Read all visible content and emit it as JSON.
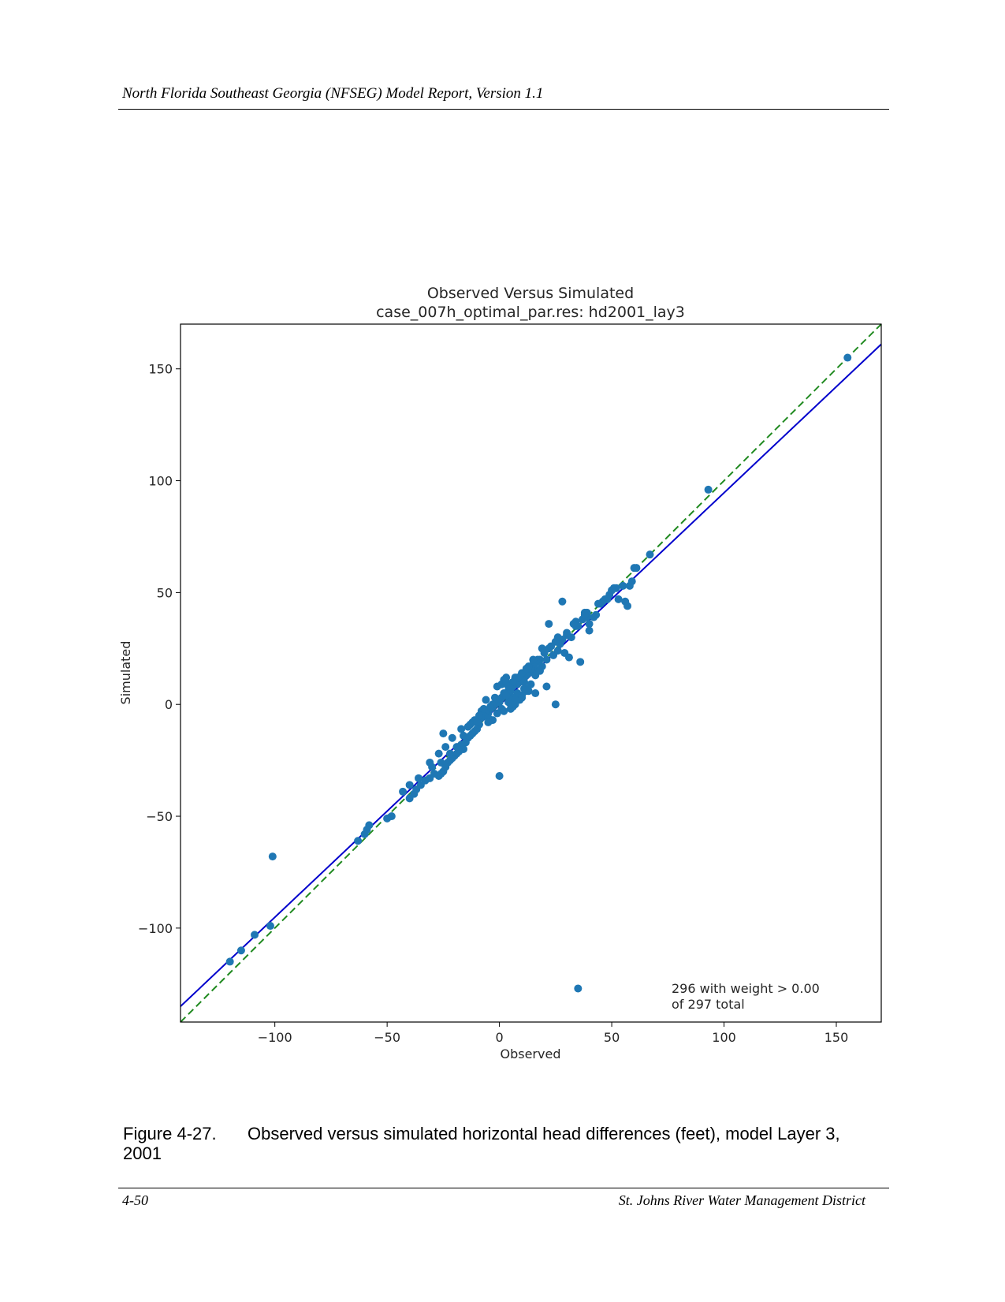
{
  "header": {
    "title": "North Florida Southeast Georgia (NFSEG) Model Report, Version 1.1"
  },
  "footer": {
    "page": "4-50",
    "organization": "St. Johns River Water Management District"
  },
  "caption": {
    "number": "Figure 4-27.",
    "text": "Observed versus simulated horizontal head differences (feet), model Layer 3, 2001"
  },
  "colors": {
    "points": "#1f77b4",
    "fit_line": "#0000cc",
    "one_to_one_line": "#228B22"
  },
  "chart_data": {
    "type": "scatter",
    "title": "Observed Versus Simulated",
    "subtitle": "case_007h_optimal_par.res: hd2001_lay3",
    "xlabel": "Observed",
    "ylabel": "Simulated",
    "xlim": [
      -142,
      170
    ],
    "ylim": [
      -142,
      170
    ],
    "xticks": [
      -100,
      -50,
      0,
      50,
      100,
      150
    ],
    "yticks": [
      -100,
      -50,
      0,
      50,
      100,
      150
    ],
    "tick_labels": {
      "x": [
        "−100",
        "−50",
        "0",
        "50",
        "100",
        "150"
      ],
      "y": [
        "−100",
        "−50",
        "0",
        "50",
        "100",
        "150"
      ]
    },
    "annotation": {
      "line1": "296 with weight > 0.00",
      "line2": "of 297 total",
      "position": "bottom-right"
    },
    "lines": [
      {
        "style": "solid",
        "color": "#0000cc",
        "x": [
          -142,
          170
        ],
        "y": [
          -135,
          161
        ]
      },
      {
        "style": "dashed",
        "color": "#228B22",
        "x": [
          -142,
          170
        ],
        "y": [
          -142,
          170
        ]
      }
    ],
    "series": [
      {
        "x": [
          155,
          93,
          67,
          61,
          59,
          58,
          55,
          51,
          49,
          47,
          53,
          56,
          57,
          48,
          45,
          43,
          40,
          39,
          38,
          37,
          35,
          34,
          32,
          30,
          28,
          27,
          25,
          24,
          22,
          21,
          20,
          19,
          18,
          17,
          16,
          15,
          14,
          13,
          12,
          11,
          10,
          9,
          8,
          7,
          6,
          5,
          4,
          3,
          2,
          1,
          0,
          -1,
          -2,
          -3,
          -4,
          -5,
          -6,
          -7,
          -8,
          -9,
          -10,
          -11,
          -12,
          -13,
          -14,
          -15,
          -16,
          -17,
          -18,
          -19,
          -20,
          -21,
          -22,
          -23,
          -24,
          -25,
          -26,
          -27,
          -29,
          -31,
          -33,
          -35,
          -37,
          -38,
          -40,
          -43,
          -48,
          -50,
          -58,
          -59,
          -60,
          -63,
          -101,
          -102,
          -109,
          -115,
          -120,
          35,
          39,
          28,
          29,
          31,
          40,
          42,
          22,
          25,
          19,
          14,
          21,
          3,
          5,
          7,
          9,
          12,
          16,
          2,
          -1,
          4,
          6,
          8,
          10,
          13,
          11,
          1,
          -3,
          -6,
          -8,
          -11,
          -14,
          -16,
          -19,
          -22,
          -26,
          -30,
          -25,
          0,
          3,
          7,
          10,
          13,
          17,
          20,
          23,
          26,
          30,
          33,
          36,
          15,
          18,
          9,
          11,
          5,
          2,
          -2,
          -4,
          -7,
          -9,
          -12,
          -13,
          -17,
          -21,
          -24,
          -27,
          -31,
          -36,
          -40,
          8,
          6,
          4,
          1,
          -1,
          12,
          14,
          3,
          0,
          -5,
          -10,
          24,
          26,
          18,
          16,
          10,
          7,
          5,
          2,
          -3,
          -5,
          60,
          52,
          46,
          38,
          34,
          44,
          50,
          8,
          10,
          12,
          6,
          4
        ],
        "y": [
          155,
          96,
          67,
          61,
          55,
          53,
          53,
          52,
          49,
          47,
          47,
          46,
          44,
          47,
          45,
          40,
          36,
          39,
          41,
          38,
          35,
          37,
          30,
          31,
          29,
          27,
          28,
          22,
          25,
          20,
          23,
          17,
          20,
          19,
          16,
          18,
          15,
          14,
          13,
          12,
          11,
          10,
          9,
          9,
          8,
          7,
          6,
          5,
          4,
          3,
          2,
          1,
          0,
          -1,
          -2,
          -4,
          -3,
          -5,
          -6,
          -9,
          -11,
          -12,
          -13,
          -14,
          -15,
          -17,
          -20,
          -18,
          -21,
          -22,
          -23,
          -24,
          -25,
          -26,
          -28,
          -30,
          -31,
          -32,
          -31,
          -33,
          -34,
          -36,
          -38,
          -40,
          -42,
          -39,
          -50,
          -51,
          -54,
          -56,
          -58,
          -61,
          -68,
          -99,
          -103,
          -110,
          -115,
          -127,
          41,
          46,
          23,
          21,
          33,
          39,
          36,
          0,
          25,
          16,
          8,
          12,
          -2,
          0,
          2,
          6,
          5,
          11,
          8,
          4,
          -1,
          3,
          4,
          6,
          7,
          9,
          0,
          2,
          -3,
          -7,
          -10,
          -14,
          -19,
          -22,
          -26,
          -28,
          -13,
          -32,
          10,
          12,
          14,
          17,
          20,
          24,
          26,
          30,
          32,
          36,
          19,
          20,
          15,
          12,
          10,
          6,
          5,
          3,
          -1,
          -2,
          -5,
          -8,
          -9,
          -11,
          -15,
          -19,
          -22,
          -26,
          -33,
          -36,
          5,
          3,
          1,
          -2,
          -4,
          7,
          9,
          4,
          1,
          -6,
          -8,
          22,
          24,
          15,
          13,
          3,
          2,
          0,
          -3,
          -7,
          -8,
          61,
          52,
          46,
          40,
          35,
          45,
          51,
          12,
          14,
          16,
          10,
          8
        ]
      }
    ]
  }
}
